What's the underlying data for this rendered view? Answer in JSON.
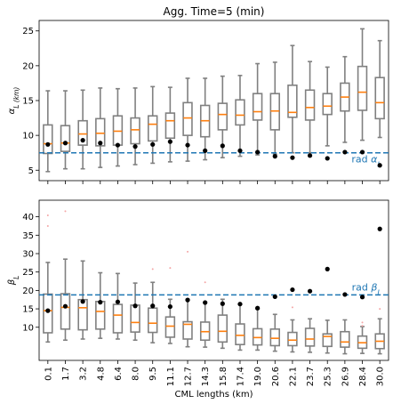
{
  "chart_data": [
    {
      "type": "box",
      "title": "Agg. Time=5 (min)",
      "ylabel": "α_L (km)",
      "ylim": [
        3.5,
        26.5
      ],
      "yticks": [
        5,
        10,
        15,
        20,
        25
      ],
      "categories": [
        "0.1",
        "1.7",
        "3.2",
        "4.8",
        "6.4",
        "8.0",
        "9.5",
        "11.1",
        "12.7",
        "14.3",
        "15.8",
        "17.4",
        "19.0",
        "20.6",
        "22.1",
        "23.7",
        "25.3",
        "26.9",
        "28.4",
        "30.0"
      ],
      "boxes": [
        {
          "whislo": 4.8,
          "q1": 7.4,
          "med": 8.8,
          "q3": 11.5,
          "whishi": 16.4
        },
        {
          "whislo": 5.2,
          "q1": 7.7,
          "med": 8.9,
          "q3": 11.4,
          "whishi": 16.4
        },
        {
          "whislo": 5.2,
          "q1": 8.6,
          "med": 10.2,
          "q3": 12.1,
          "whishi": 16.5
        },
        {
          "whislo": 5.4,
          "q1": 8.5,
          "med": 10.3,
          "q3": 12.4,
          "whishi": 16.8
        },
        {
          "whislo": 5.6,
          "q1": 8.6,
          "med": 10.6,
          "q3": 12.8,
          "whishi": 16.7
        },
        {
          "whislo": 5.8,
          "q1": 8.8,
          "med": 10.8,
          "q3": 12.5,
          "whishi": 16.8
        },
        {
          "whislo": 6.0,
          "q1": 9.2,
          "med": 11.6,
          "q3": 12.8,
          "whishi": 17.0
        },
        {
          "whislo": 6.2,
          "q1": 9.6,
          "med": 12.1,
          "q3": 13.2,
          "whishi": 16.9
        },
        {
          "whislo": 6.3,
          "q1": 10.0,
          "med": 12.5,
          "q3": 14.7,
          "whishi": 18.2
        },
        {
          "whislo": 6.5,
          "q1": 9.8,
          "med": 12.1,
          "q3": 14.3,
          "whishi": 18.2
        },
        {
          "whislo": 6.8,
          "q1": 10.8,
          "med": 13.0,
          "q3": 14.6,
          "whishi": 18.5
        },
        {
          "whislo": 7.0,
          "q1": 11.5,
          "med": 12.9,
          "q3": 15.1,
          "whishi": 18.6
        },
        {
          "whislo": 7.2,
          "q1": 12.2,
          "med": 13.4,
          "q3": 16.0,
          "whishi": 20.3
        },
        {
          "whislo": 7.3,
          "q1": 10.8,
          "med": 13.5,
          "q3": 16.0,
          "whishi": 20.5
        },
        {
          "whislo": 7.5,
          "q1": 12.6,
          "med": 13.3,
          "q3": 17.2,
          "whishi": 22.9
        },
        {
          "whislo": 7.5,
          "q1": 12.2,
          "med": 14.0,
          "q3": 16.5,
          "whishi": 20.6
        },
        {
          "whislo": 8.5,
          "q1": 13.0,
          "med": 14.2,
          "q3": 16.0,
          "whishi": 19.8
        },
        {
          "whislo": 9.0,
          "q1": 13.5,
          "med": 15.5,
          "q3": 17.5,
          "whishi": 21.3
        },
        {
          "whislo": 9.3,
          "q1": 13.6,
          "med": 16.2,
          "q3": 19.9,
          "whishi": 25.3
        },
        {
          "whislo": 9.7,
          "q1": 12.4,
          "med": 14.7,
          "q3": 18.3,
          "whishi": 23.6
        }
      ],
      "points": [
        8.7,
        8.9,
        9.3,
        8.9,
        8.6,
        8.4,
        8.7,
        9.1,
        8.6,
        7.8,
        8.5,
        7.8,
        7.6,
        7.0,
        6.8,
        7.1,
        6.7,
        7.6,
        7.6,
        5.7
      ],
      "reference": {
        "value": 7.5,
        "label": "rad α_L"
      }
    },
    {
      "type": "box",
      "ylabel": "β_L",
      "xlabel": "CML lengths (km)",
      "ylim": [
        1,
        44.5
      ],
      "yticks": [
        10,
        15,
        20,
        25,
        30,
        35,
        40
      ],
      "categories": [
        "0.1",
        "1.7",
        "3.2",
        "4.8",
        "6.4",
        "8.0",
        "9.5",
        "11.1",
        "12.7",
        "14.3",
        "15.8",
        "17.4",
        "19.0",
        "20.6",
        "22.1",
        "23.7",
        "25.3",
        "26.9",
        "28.4",
        "30.0"
      ],
      "boxes": [
        {
          "whislo": 6.0,
          "q1": 8.5,
          "med": 14.5,
          "q3": 19.0,
          "whishi": 27.6
        },
        {
          "whislo": 6.5,
          "q1": 9.5,
          "med": 15.4,
          "q3": 19.1,
          "whishi": 28.5
        },
        {
          "whislo": 6.8,
          "q1": 9.3,
          "med": 15.3,
          "q3": 17.5,
          "whishi": 28.0
        },
        {
          "whislo": 7.0,
          "q1": 9.5,
          "med": 14.3,
          "q3": 17.0,
          "whishi": 24.8
        },
        {
          "whislo": 6.8,
          "q1": 8.5,
          "med": 13.3,
          "q3": 16.2,
          "whishi": 24.6
        },
        {
          "whislo": 6.5,
          "q1": 8.7,
          "med": 11.3,
          "q3": 16.0,
          "whishi": 22.0
        },
        {
          "whislo": 5.8,
          "q1": 8.6,
          "med": 11.1,
          "q3": 15.2,
          "whishi": 22.2
        },
        {
          "whislo": 5.6,
          "q1": 7.3,
          "med": 10.3,
          "q3": 12.8,
          "whishi": 17.6
        },
        {
          "whislo": 4.7,
          "q1": 6.8,
          "med": 10.8,
          "q3": 11.5,
          "whishi": 17.6
        },
        {
          "whislo": 4.6,
          "q1": 6.5,
          "med": 8.8,
          "q3": 11.4,
          "whishi": 16.8
        },
        {
          "whislo": 4.3,
          "q1": 6.0,
          "med": 8.9,
          "q3": 13.3,
          "whishi": 17.6
        },
        {
          "whislo": 3.8,
          "q1": 5.3,
          "med": 7.8,
          "q3": 10.9,
          "whishi": 16.2
        },
        {
          "whislo": 3.8,
          "q1": 5.2,
          "med": 7.2,
          "q3": 9.6,
          "whishi": 15.0
        },
        {
          "whislo": 3.5,
          "q1": 5.0,
          "med": 7.0,
          "q3": 9.5,
          "whishi": 13.5
        },
        {
          "whislo": 3.3,
          "q1": 5.0,
          "med": 6.5,
          "q3": 8.6,
          "whishi": 12.0
        },
        {
          "whislo": 3.2,
          "q1": 4.9,
          "med": 6.8,
          "q3": 9.7,
          "whishi": 12.3
        },
        {
          "whislo": 3.0,
          "q1": 4.8,
          "med": 7.5,
          "q3": 8.2,
          "whishi": 11.9
        },
        {
          "whislo": 2.8,
          "q1": 4.6,
          "med": 6.0,
          "q3": 8.8,
          "whishi": 12.0
        },
        {
          "whislo": 2.9,
          "q1": 4.3,
          "med": 5.8,
          "q3": 7.6,
          "whishi": 10.2
        },
        {
          "whislo": 2.8,
          "q1": 4.2,
          "med": 6.2,
          "q3": 8.2,
          "whishi": 12.3
        }
      ],
      "points": [
        14.5,
        15.7,
        17.0,
        16.8,
        16.9,
        15.8,
        15.8,
        15.6,
        17.4,
        16.7,
        16.4,
        16.3,
        15.2,
        18.3,
        20.2,
        19.8,
        25.8,
        18.9,
        18.2,
        36.7
      ],
      "outliers": [
        {
          "i": 0,
          "v": 40.4
        },
        {
          "i": 0,
          "v": 37.5
        },
        {
          "i": 1,
          "v": 41.5
        },
        {
          "i": 6,
          "v": 25.8
        },
        {
          "i": 7,
          "v": 26.1
        },
        {
          "i": 8,
          "v": 30.5
        },
        {
          "i": 9,
          "v": 22.2
        },
        {
          "i": 14,
          "v": 15.4
        },
        {
          "i": 18,
          "v": 11.3
        },
        {
          "i": 18,
          "v": 10.4
        },
        {
          "i": 19,
          "v": 15.0
        }
      ],
      "reference": {
        "value": 18.8,
        "label": "rad β_L"
      }
    }
  ],
  "colors": {
    "box": "#808080",
    "median": "#ff7f0e",
    "reference": "#1f77b4",
    "point": "#000000",
    "outlier": "#f4a6a6"
  }
}
